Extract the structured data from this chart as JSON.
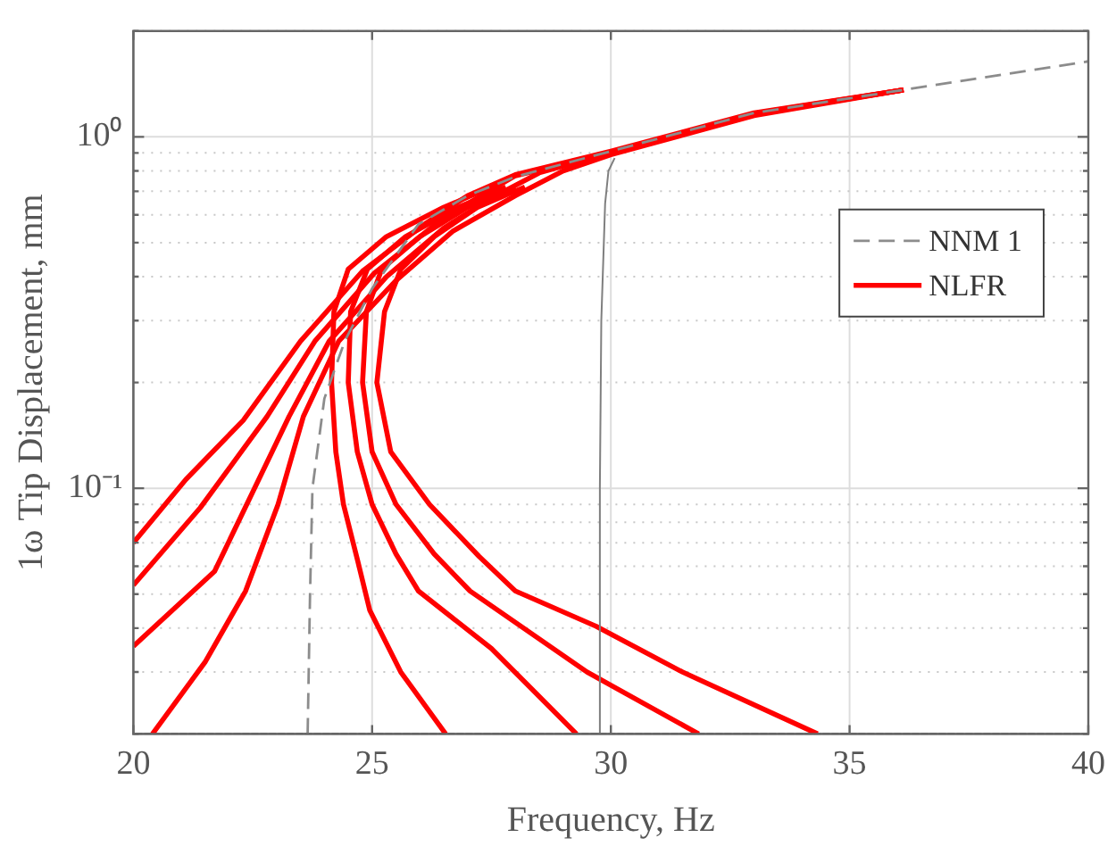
{
  "chart_data": {
    "type": "line",
    "xlabel": "Frequency, Hz",
    "ylabel": "1ω Tip Displacement, mm",
    "log": "y",
    "xlim": [
      20,
      40
    ],
    "xticks": [
      20,
      25,
      30,
      35,
      40
    ],
    "ylim": [
      0.02,
      2
    ],
    "yticks": [
      {
        "value": 0.02,
        "label": null
      },
      {
        "value": 0.03,
        "label": null
      },
      {
        "value": 0.04,
        "label": null
      },
      {
        "value": 0.05,
        "label": null
      },
      {
        "value": 0.06,
        "label": null
      },
      {
        "value": 0.07,
        "label": null
      },
      {
        "value": 0.08,
        "label": null
      },
      {
        "value": 0.09,
        "label": null
      },
      {
        "value": 0.1,
        "label": "10⁻¹"
      },
      {
        "value": 0.2,
        "label": null
      },
      {
        "value": 0.3,
        "label": null
      },
      {
        "value": 0.4,
        "label": null
      },
      {
        "value": 0.5,
        "label": null
      },
      {
        "value": 0.6,
        "label": null
      },
      {
        "value": 0.7,
        "label": null
      },
      {
        "value": 0.8,
        "label": null
      },
      {
        "value": 0.9,
        "label": null
      },
      {
        "value": 1,
        "label": "10⁰"
      },
      {
        "value": 2,
        "label": null
      }
    ],
    "grid": true,
    "legend": "top right",
    "marker": "none",
    "series": [
      {
        "name": "NNM 1",
        "color": "#8c8c8c",
        "line_style": "dashed",
        "x": [
          23.65,
          23.7,
          23.75,
          24.0,
          24.43,
          25.0,
          25.97,
          27,
          28,
          30,
          33,
          36.13,
          40
        ],
        "values": [
          0.02,
          0.05,
          0.1,
          0.18,
          0.263,
          0.37,
          0.564,
          0.68,
          0.77,
          0.91,
          1.17,
          1.36,
          1.64
        ]
      },
      {
        "color": "#7f7f7f",
        "line_style": "solid",
        "x": [
          29.75,
          29.77,
          29.8,
          29.88,
          29.95,
          30.08
        ],
        "values": [
          0.02,
          0.1,
          0.3,
          0.646,
          0.8,
          0.87
        ]
      },
      {
        "name": "NLFR",
        "color": "#ff0000",
        "line_style": "solid",
        "x": [
          20,
          21.1,
          22.3,
          23.5,
          24.8,
          26.1,
          27,
          28,
          30,
          33,
          36.13
        ],
        "values": [
          0.07,
          0.106,
          0.156,
          0.262,
          0.415,
          0.565,
          0.68,
          0.78,
          0.91,
          1.17,
          1.36
        ]
      },
      {
        "color": "#ff0000",
        "line_style": "solid",
        "x": [
          20,
          21.4,
          22.8,
          23.8,
          25.05,
          26.3,
          27.2,
          28,
          30,
          33,
          36.13
        ],
        "values": [
          0.053,
          0.088,
          0.16,
          0.262,
          0.41,
          0.56,
          0.67,
          0.775,
          0.905,
          1.165,
          1.36
        ]
      },
      {
        "color": "#ff0000",
        "line_style": "solid",
        "x": [
          20,
          21.7,
          23.26,
          24.1,
          25.3,
          26.5,
          27.5,
          28.5,
          30,
          33,
          36.13
        ],
        "values": [
          0.0355,
          0.058,
          0.16,
          0.262,
          0.4,
          0.55,
          0.67,
          0.79,
          0.9,
          1.16,
          1.36
        ]
      },
      {
        "color": "#ff0000",
        "line_style": "solid",
        "x": [
          20.4,
          21.5,
          22.35,
          23.03,
          23.56,
          24.3,
          25.5,
          26.7,
          28,
          29,
          30,
          33,
          36.13
        ],
        "values": [
          0.02,
          0.032,
          0.051,
          0.09,
          0.16,
          0.262,
          0.39,
          0.54,
          0.68,
          0.8,
          0.89,
          1.15,
          1.36
        ]
      },
      {
        "color": "#ff0000",
        "line_style": "solid",
        "x": [
          26.54,
          25.6,
          24.95,
          24.7,
          24.4,
          24.24,
          24.15,
          24.2,
          24.5,
          25.3,
          26.5,
          27.5
        ],
        "values": [
          0.02,
          0.03,
          0.045,
          0.062,
          0.09,
          0.127,
          0.2,
          0.318,
          0.42,
          0.52,
          0.63,
          0.72
        ]
      },
      {
        "color": "#ff0000",
        "line_style": "solid",
        "x": [
          29.28,
          27.5,
          25.97,
          25.5,
          25.0,
          24.69,
          24.5,
          24.55,
          24.9,
          25.7,
          26.8,
          27.8
        ],
        "values": [
          0.02,
          0.035,
          0.051,
          0.065,
          0.09,
          0.127,
          0.2,
          0.318,
          0.42,
          0.52,
          0.63,
          0.72
        ]
      },
      {
        "color": "#ff0000",
        "line_style": "solid",
        "x": [
          31.84,
          29.5,
          27.05,
          26.3,
          25.5,
          25.0,
          24.8,
          24.88,
          25.2,
          26.0,
          27.0,
          28.0
        ],
        "values": [
          0.02,
          0.03,
          0.051,
          0.065,
          0.09,
          0.127,
          0.2,
          0.318,
          0.42,
          0.52,
          0.63,
          0.72
        ]
      },
      {
        "color": "#ff0000",
        "line_style": "solid",
        "x": [
          34.33,
          31.5,
          29.69,
          28.0,
          27.24,
          26.2,
          25.39,
          25.1,
          25.26,
          25.6,
          26.3,
          27.2,
          28.2
        ],
        "values": [
          0.02,
          0.03,
          0.0405,
          0.051,
          0.064,
          0.09,
          0.127,
          0.2,
          0.318,
          0.42,
          0.52,
          0.63,
          0.72
        ]
      }
    ]
  }
}
